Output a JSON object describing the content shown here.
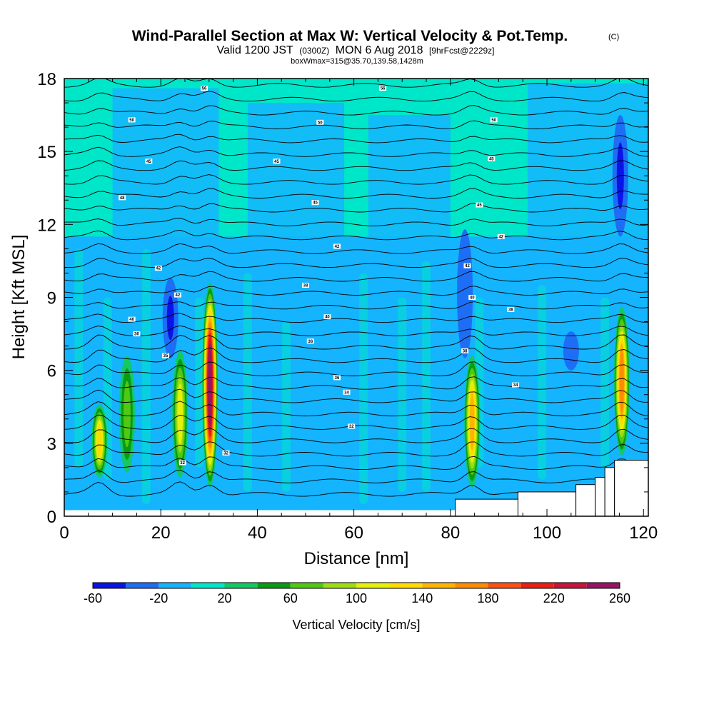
{
  "title": {
    "main": "Wind-Parallel Section at Max W: Vertical Velocity & Pot.Temp.",
    "copyright": "(C)",
    "valid_prefix": "Valid 1200 JST",
    "utc": "(0300Z)",
    "date": "MON 6 Aug 2018",
    "forecast": "[9hrFcst@2229z]",
    "box_info": "boxWmax=315@35.70,139.58,1428m"
  },
  "chart_data": {
    "type": "heatmap",
    "xlabel": "Distance [nm]",
    "ylabel": "Height [Kft MSL]",
    "xlim": [
      0,
      121
    ],
    "ylim": [
      0,
      18
    ],
    "xticks": [
      "0",
      "20",
      "40",
      "60",
      "80",
      "100",
      "120"
    ],
    "yticks": [
      "0",
      "3",
      "6",
      "9",
      "12",
      "15",
      "18"
    ],
    "colorbar": {
      "title": "Vertical Velocity [cm/s]",
      "levels": [
        -60,
        -40,
        -20,
        0,
        20,
        40,
        60,
        80,
        100,
        120,
        140,
        160,
        180,
        200,
        220,
        240,
        260
      ],
      "labels": [
        "-60",
        "-20",
        "20",
        "60",
        "100",
        "140",
        "180",
        "220",
        "260"
      ],
      "colors": [
        "#0a14e6",
        "#1e6ef5",
        "#14b4ff",
        "#00e6c8",
        "#14c864",
        "#0a9b14",
        "#50c814",
        "#a0dc14",
        "#e6f00a",
        "#ffdc00",
        "#ffb400",
        "#ff8c00",
        "#ff5014",
        "#eb1e14",
        "#c8143c",
        "#961464"
      ]
    },
    "updrafts": [
      {
        "x": 7.3,
        "base_kft": 1.6,
        "top_kft": 4.6,
        "peak_cm_s": 130
      },
      {
        "x": 13,
        "base_kft": 1.8,
        "top_kft": 6.6,
        "peak_cm_s": 60
      },
      {
        "x": 24,
        "base_kft": 1.6,
        "top_kft": 6.8,
        "peak_cm_s": 110
      },
      {
        "x": 30.2,
        "base_kft": 1.2,
        "top_kft": 9.6,
        "peak_cm_s": 240
      },
      {
        "x": 84.5,
        "base_kft": 1.2,
        "top_kft": 6.6,
        "peak_cm_s": 150
      },
      {
        "x": 115.5,
        "base_kft": 2.5,
        "top_kft": 8.6,
        "peak_cm_s": 160
      }
    ],
    "downdrafts": [
      {
        "x": 22,
        "base_kft": 6.5,
        "top_kft": 9.8,
        "peak_cm_s": -45
      },
      {
        "x": 115.2,
        "base_kft": 11.5,
        "top_kft": 16.5,
        "peak_cm_s": -50
      },
      {
        "x": 105,
        "base_kft": 6.0,
        "top_kft": 7.6,
        "peak_cm_s": -35
      },
      {
        "x": 83,
        "base_kft": 6.5,
        "top_kft": 11.8,
        "peak_cm_s": -35
      }
    ],
    "isentrope_labels": [
      {
        "text": "56",
        "x": 29,
        "y_kft": 17.6
      },
      {
        "text": "56",
        "x": 66,
        "y_kft": 17.6
      },
      {
        "text": "50",
        "x": 14,
        "y_kft": 16.3
      },
      {
        "text": "50",
        "x": 53,
        "y_kft": 16.2
      },
      {
        "text": "50",
        "x": 89,
        "y_kft": 16.3
      },
      {
        "text": "45",
        "x": 17.5,
        "y_kft": 14.6
      },
      {
        "text": "45",
        "x": 44,
        "y_kft": 14.6
      },
      {
        "text": "45",
        "x": 88.5,
        "y_kft": 14.7
      },
      {
        "text": "48",
        "x": 12,
        "y_kft": 13.1
      },
      {
        "text": "45",
        "x": 52,
        "y_kft": 12.9
      },
      {
        "text": "45",
        "x": 86,
        "y_kft": 12.8
      },
      {
        "text": "42",
        "x": 56.5,
        "y_kft": 11.1
      },
      {
        "text": "42",
        "x": 90.5,
        "y_kft": 11.5
      },
      {
        "text": "42",
        "x": 19.5,
        "y_kft": 10.2
      },
      {
        "text": "42",
        "x": 83.5,
        "y_kft": 10.3
      },
      {
        "text": "42",
        "x": 23.5,
        "y_kft": 9.1
      },
      {
        "text": "38",
        "x": 50,
        "y_kft": 9.5
      },
      {
        "text": "40",
        "x": 84.5,
        "y_kft": 9.0
      },
      {
        "text": "40",
        "x": 54.5,
        "y_kft": 8.2
      },
      {
        "text": "38",
        "x": 92.5,
        "y_kft": 8.5
      },
      {
        "text": "40",
        "x": 14,
        "y_kft": 8.1
      },
      {
        "text": "36",
        "x": 15,
        "y_kft": 7.5
      },
      {
        "text": "38",
        "x": 51,
        "y_kft": 7.2
      },
      {
        "text": "38",
        "x": 83,
        "y_kft": 6.8
      },
      {
        "text": "35",
        "x": 21,
        "y_kft": 6.6
      },
      {
        "text": "36",
        "x": 56.5,
        "y_kft": 5.7
      },
      {
        "text": "34",
        "x": 93.5,
        "y_kft": 5.4
      },
      {
        "text": "34",
        "x": 58.5,
        "y_kft": 5.1
      },
      {
        "text": "32",
        "x": 59.5,
        "y_kft": 3.7
      },
      {
        "text": "32",
        "x": 24.5,
        "y_kft": 2.2
      },
      {
        "text": "32",
        "x": 33.5,
        "y_kft": 2.6
      }
    ],
    "terrain_steps": [
      {
        "x0": 81,
        "x1": 94,
        "y_kft": 0.7
      },
      {
        "x0": 94,
        "x1": 106,
        "y_kft": 1.0
      },
      {
        "x0": 106,
        "x1": 110,
        "y_kft": 1.3
      },
      {
        "x0": 110,
        "x1": 112,
        "y_kft": 1.6
      },
      {
        "x0": 112,
        "x1": 114,
        "y_kft": 2.0
      },
      {
        "x0": 114,
        "x1": 121,
        "y_kft": 2.3
      }
    ]
  }
}
